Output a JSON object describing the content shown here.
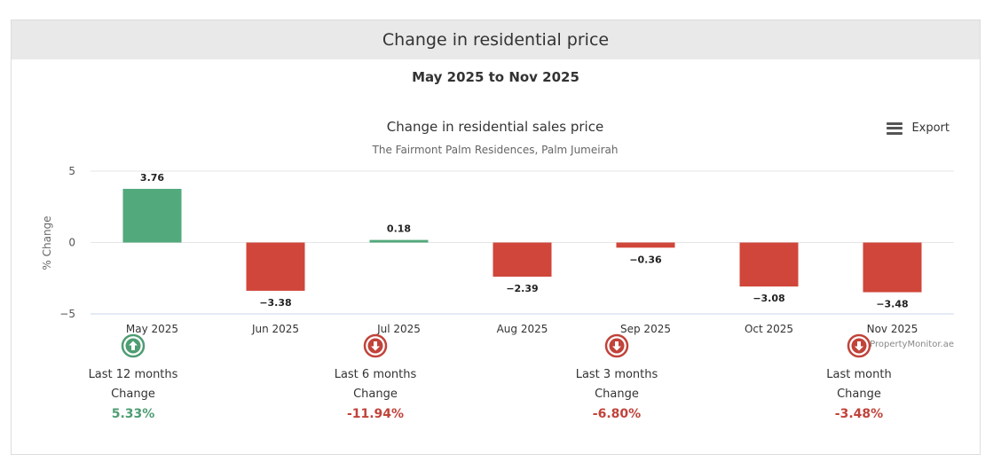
{
  "header": {
    "title": "Change in residential price"
  },
  "date_range": "May 2025 to Nov 2025",
  "export_label": "Export",
  "colors": {
    "positive": "#52a97b",
    "negative": "#d0463a",
    "up_text": "#4e9d73",
    "down_text": "#c1433a"
  },
  "chart_data": {
    "type": "bar",
    "title": "Change in residential sales price",
    "subtitle": "The Fairmont Palm Residences, Palm Jumeirah",
    "ylabel": "% Change",
    "xlabel": "",
    "ylim": [
      -5,
      5
    ],
    "yticks": [
      "5",
      "0",
      "−5"
    ],
    "categories": [
      "May 2025",
      "Jun 2025",
      "Jul 2025",
      "Aug 2025",
      "Sep 2025",
      "Oct 2025",
      "Nov 2025"
    ],
    "values": [
      3.76,
      -3.38,
      0.18,
      -2.39,
      -0.36,
      -3.08,
      -3.48
    ],
    "data_labels": [
      "3.76",
      "−3.38",
      "0.18",
      "−2.39",
      "−0.36",
      "−3.08",
      "−3.48"
    ],
    "grid": true,
    "credit": "PropertyMonitor.ae"
  },
  "summary": [
    {
      "period": "Last 12 months",
      "label": "Change",
      "value": "5.33%",
      "direction": "up",
      "icon": "arrow-up-circle-icon"
    },
    {
      "period": "Last 6 months",
      "label": "Change",
      "value": "-11.94%",
      "direction": "down",
      "icon": "arrow-down-circle-icon"
    },
    {
      "period": "Last 3 months",
      "label": "Change",
      "value": "-6.80%",
      "direction": "down",
      "icon": "arrow-down-circle-icon"
    },
    {
      "period": "Last month",
      "label": "Change",
      "value": "-3.48%",
      "direction": "down",
      "icon": "arrow-down-circle-icon"
    }
  ]
}
